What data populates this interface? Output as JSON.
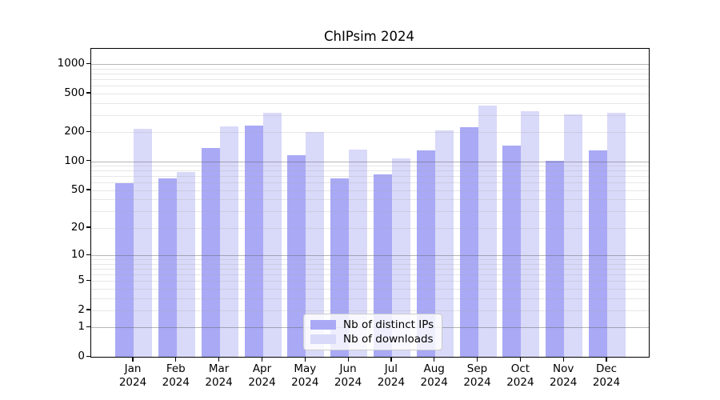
{
  "title": "ChIPsim 2024",
  "chart_data": {
    "type": "bar",
    "title": "ChIPsim 2024",
    "categories": [
      "Jan 2024",
      "Feb 2024",
      "Mar 2024",
      "Apr 2024",
      "May 2024",
      "Jun 2024",
      "Jul 2024",
      "Aug 2024",
      "Sep 2024",
      "Oct 2024",
      "Nov 2024",
      "Dec 2024"
    ],
    "series": [
      {
        "name": "Nb of distinct IPs",
        "color": "#a9a9f6",
        "values": [
          59,
          66,
          138,
          233,
          116,
          66,
          73,
          129,
          224,
          145,
          102,
          130
        ]
      },
      {
        "name": "Nb of downloads",
        "color": "#d9d9f9",
        "values": [
          216,
          77,
          232,
          315,
          200,
          132,
          108,
          209,
          376,
          327,
          303,
          320
        ]
      }
    ],
    "yscale": "log1p",
    "yticks": [
      0,
      1,
      2,
      5,
      10,
      20,
      50,
      100,
      200,
      500,
      1000
    ],
    "ylim": [
      0,
      1440
    ],
    "grid": "horizontal",
    "legend_position": "lower-center",
    "colors": {
      "major_grid": "#b7b7b7",
      "minor_grid": "#e7e7e7",
      "axis": "#000000",
      "background": "#ffffff"
    }
  }
}
